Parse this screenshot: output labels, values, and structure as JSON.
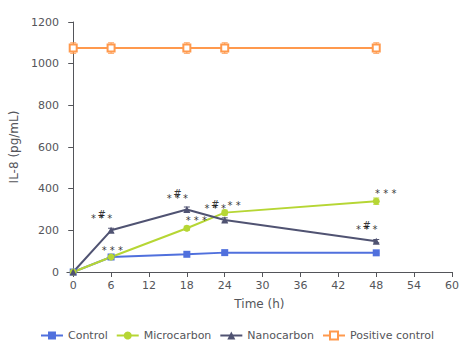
{
  "chart_data": {
    "type": "line",
    "xlabel": "Time (h)",
    "ylabel": "IL-8 (pg/mL)",
    "x": [
      0,
      6,
      18,
      24,
      48
    ],
    "series": [
      {
        "name": "Control",
        "marker": "square",
        "values": [
          0,
          72,
          85,
          93,
          92
        ],
        "errors": [
          0,
          4,
          4,
          4,
          4
        ]
      },
      {
        "name": "Microcarbon",
        "marker": "circle",
        "values": [
          0,
          72,
          210,
          285,
          340
        ],
        "errors": [
          0,
          5,
          10,
          12,
          15
        ]
      },
      {
        "name": "Nanocarbon",
        "marker": "triangle",
        "values": [
          0,
          200,
          300,
          250,
          148
        ],
        "errors": [
          0,
          10,
          12,
          10,
          8
        ]
      },
      {
        "name": "Positive control",
        "marker": "open square",
        "values": [
          1075,
          1075,
          1075,
          1075,
          1075
        ],
        "errors": [
          25,
          25,
          25,
          25,
          25
        ]
      }
    ],
    "xlim": [
      -1,
      60
    ],
    "xticks": [
      0,
      6,
      12,
      18,
      24,
      30,
      36,
      42,
      48,
      54,
      60
    ],
    "ylim": [
      0,
      1200
    ],
    "yticks": [
      0,
      200,
      400,
      600,
      800,
      1000,
      1200
    ],
    "grid": false,
    "legend": "bottom",
    "annotations": [
      {
        "text": "* * *",
        "x": 4.5,
        "y": 232
      },
      {
        "text": "#",
        "x": 4.5,
        "y": 252
      },
      {
        "text": "* * *",
        "x": 6.2,
        "y": 80
      },
      {
        "text": "* * *",
        "x": 16.5,
        "y": 330
      },
      {
        "text": "#",
        "x": 16.5,
        "y": 352
      },
      {
        "text": "* * *",
        "x": 19.5,
        "y": 222
      },
      {
        "text": "* * *",
        "x": 22.5,
        "y": 280
      },
      {
        "text": "#",
        "x": 22.5,
        "y": 302
      },
      {
        "text": "* *",
        "x": 25.5,
        "y": 295
      },
      {
        "text": "* * *",
        "x": 46.5,
        "y": 178
      },
      {
        "text": "#",
        "x": 46.5,
        "y": 198
      },
      {
        "text": "* * *",
        "x": 49.5,
        "y": 355
      }
    ]
  }
}
